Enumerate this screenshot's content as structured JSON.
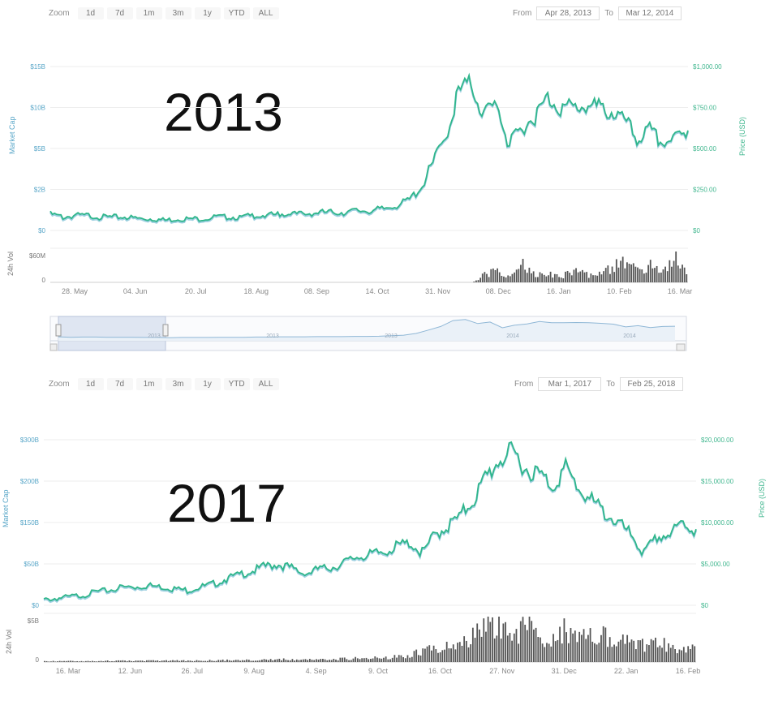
{
  "chart_data": [
    {
      "type": "line",
      "panel": "2013",
      "annotation": "2013",
      "toolbar": {
        "zoom_label": "Zoom",
        "buttons": [
          "1d",
          "7d",
          "1m",
          "3m",
          "1y",
          "YTD",
          "ALL"
        ],
        "from_label": "From",
        "from_value": "Apr 28, 2013",
        "to_label": "To",
        "to_value": "Mar 12, 2014"
      },
      "left_axis_label": "Market Cap",
      "right_axis_label": "Price (USD)",
      "left_ticks": [
        "$15B",
        "$10B",
        "$5B",
        "$2B",
        "$0"
      ],
      "right_ticks": [
        "$1,000.00",
        "$750.00",
        "$500.00",
        "$250.00",
        "$0"
      ],
      "x_ticks": [
        "28. May",
        "04. Jun",
        "20. Jul",
        "18. Aug",
        "08. Sep",
        "14. Oct",
        "31. Nov",
        "08. Dec",
        "16. Jan",
        "10. Feb",
        "16. Mar"
      ],
      "volume_axis_label": "24h Vol",
      "volume_ticks": [
        "$60M",
        "0"
      ],
      "navigator_labels": [
        "2013",
        "2013",
        "2013",
        "2014",
        "2014"
      ],
      "x": [
        0,
        2,
        4,
        6,
        8,
        10,
        12,
        14,
        16,
        18,
        20,
        22,
        24,
        26,
        28,
        30,
        32,
        34,
        36,
        38,
        40,
        42,
        44,
        46,
        48,
        50,
        52,
        54,
        56,
        58,
        60,
        62,
        64,
        66,
        68,
        70,
        72,
        74,
        76,
        78,
        80,
        82,
        84,
        86,
        88,
        90,
        92,
        94,
        96,
        98,
        100
      ],
      "price": [
        0.11,
        0.09,
        0.1,
        0.1,
        0.09,
        0.09,
        0.09,
        0.08,
        0.08,
        0.07,
        0.08,
        0.08,
        0.08,
        0.09,
        0.09,
        0.09,
        0.1,
        0.1,
        0.11,
        0.11,
        0.11,
        0.12,
        0.12,
        0.12,
        0.13,
        0.13,
        0.14,
        0.16,
        0.19,
        0.27,
        0.43,
        0.6,
        0.88,
        0.93,
        0.74,
        0.81,
        0.54,
        0.66,
        0.72,
        0.84,
        0.78,
        0.78,
        0.79,
        0.78,
        0.75,
        0.71,
        0.58,
        0.64,
        0.55,
        0.6,
        0.61
      ],
      "volume": [
        0,
        0,
        0,
        0,
        0,
        0,
        0,
        0,
        0,
        0,
        0,
        0,
        0,
        0,
        0,
        0,
        0,
        0,
        0,
        0,
        0,
        0,
        0,
        0,
        0,
        0,
        0,
        0,
        0,
        0,
        0,
        0,
        0,
        0,
        0.25,
        0.35,
        0.15,
        0.6,
        0.2,
        0.3,
        0.2,
        0.4,
        0.25,
        0.3,
        0.5,
        0.8,
        0.35,
        0.55,
        0.3,
        0.7,
        0.3
      ],
      "ylim": [
        0,
        1
      ],
      "grid": true
    },
    {
      "type": "line",
      "panel": "2017",
      "annotation": "2017",
      "toolbar": {
        "zoom_label": "Zoom",
        "buttons": [
          "1d",
          "7d",
          "1m",
          "3m",
          "1y",
          "YTD",
          "ALL"
        ],
        "from_label": "From",
        "from_value": "Mar 1, 2017",
        "to_label": "To",
        "to_value": "Feb 25, 2018"
      },
      "left_axis_label": "Market Cap",
      "right_axis_label": "Price (USD)",
      "left_ticks": [
        "$300B",
        "$200B",
        "$150B",
        "$50B",
        "$0"
      ],
      "right_ticks": [
        "$20,000.00",
        "$15,000.00",
        "$10,000.00",
        "$5,000.00",
        "$0"
      ],
      "x_ticks": [
        "16. Mar",
        "12. Jun",
        "26. Jul",
        "9. Aug",
        "4. Sep",
        "9. Oct",
        "16. Oct",
        "27. Nov",
        "31. Dec",
        "22. Jan",
        "16. Feb"
      ],
      "volume_axis_label": "24h Vol",
      "volume_ticks": [
        "$5B",
        "0"
      ],
      "x": [
        0,
        2,
        4,
        6,
        8,
        10,
        12,
        14,
        16,
        18,
        20,
        22,
        24,
        26,
        28,
        30,
        32,
        34,
        36,
        38,
        40,
        42,
        44,
        46,
        48,
        50,
        52,
        54,
        56,
        58,
        60,
        62,
        64,
        66,
        68,
        70,
        72,
        74,
        76,
        78,
        80,
        82,
        84,
        86,
        88,
        90,
        92,
        94,
        96,
        98,
        100
      ],
      "price": [
        0.04,
        0.05,
        0.06,
        0.07,
        0.09,
        0.1,
        0.12,
        0.12,
        0.13,
        0.12,
        0.11,
        0.1,
        0.12,
        0.14,
        0.17,
        0.2,
        0.22,
        0.25,
        0.26,
        0.24,
        0.2,
        0.23,
        0.24,
        0.27,
        0.31,
        0.32,
        0.34,
        0.37,
        0.4,
        0.33,
        0.45,
        0.5,
        0.57,
        0.68,
        0.82,
        0.92,
        0.96,
        0.86,
        0.82,
        0.76,
        0.86,
        0.73,
        0.66,
        0.58,
        0.52,
        0.45,
        0.33,
        0.43,
        0.45,
        0.52,
        0.46
      ],
      "volume": [
        0.02,
        0.02,
        0.02,
        0.02,
        0.02,
        0.03,
        0.03,
        0.03,
        0.03,
        0.03,
        0.03,
        0.03,
        0.03,
        0.04,
        0.04,
        0.04,
        0.05,
        0.05,
        0.06,
        0.05,
        0.05,
        0.06,
        0.06,
        0.07,
        0.08,
        0.09,
        0.1,
        0.12,
        0.15,
        0.25,
        0.3,
        0.35,
        0.4,
        0.6,
        0.75,
        0.7,
        0.65,
        0.8,
        0.6,
        0.55,
        0.7,
        0.5,
        0.55,
        0.6,
        0.45,
        0.4,
        0.35,
        0.4,
        0.35,
        0.3,
        0.25
      ],
      "ylim": [
        0,
        1
      ],
      "grid": true
    }
  ],
  "colors": {
    "line": "#2fb68b",
    "line_shadow": "#4aa8c6",
    "volume": "#555555",
    "grid": "#eeeeee",
    "navigator_fill": "#dfe6f2"
  }
}
